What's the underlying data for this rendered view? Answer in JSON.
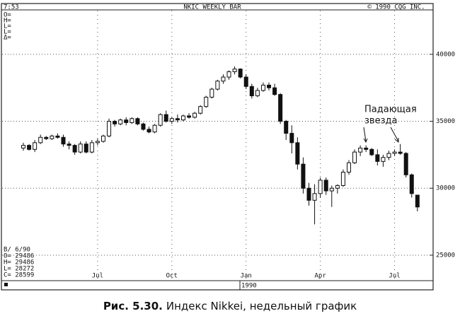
{
  "chart_data": {
    "type": "candlestick",
    "title": "NKIC WEEKLY BAR",
    "time": "7:53",
    "copyright": "© 1990 CQG INC.",
    "info_labels": [
      "O=",
      "H=",
      "L=",
      "L=",
      "Δ="
    ],
    "date": "B/ 6/90",
    "ohlc_labels": [
      "O= 29486",
      "H= 29486",
      "L= 28272",
      "C= 28599"
    ],
    "year": "1990",
    "annotation": [
      "Падающая",
      "звезда"
    ],
    "caption_label": "Рис. 5.30.",
    "caption": "Индекс Nikkei, недельный график",
    "categories": [
      null,
      null,
      null,
      null,
      null,
      null,
      null,
      null,
      null,
      null,
      null,
      null,
      null,
      "Jul",
      null,
      null,
      null,
      null,
      null,
      null,
      null,
      null,
      null,
      null,
      null,
      null,
      "Oct",
      null,
      null,
      null,
      null,
      null,
      null,
      null,
      null,
      null,
      null,
      null,
      null,
      "Jan",
      null,
      null,
      null,
      null,
      null,
      null,
      null,
      null,
      null,
      null,
      null,
      null,
      "Apr",
      null,
      null,
      null,
      null,
      null,
      null,
      null,
      null,
      null,
      null,
      null,
      null,
      "Jul",
      null,
      null,
      null,
      null
    ],
    "open": [
      33000,
      33200,
      32900,
      33400,
      33800,
      33700,
      33900,
      33800,
      33300,
      33200,
      32700,
      33300,
      32700,
      33400,
      33500,
      33900,
      35000,
      34800,
      35100,
      34900,
      35200,
      34800,
      34400,
      34200,
      34700,
      35500,
      35000,
      35200,
      35100,
      35400,
      35300,
      35600,
      36100,
      36800,
      37400,
      38000,
      38300,
      38700,
      38900,
      38300,
      37600,
      36900,
      37300,
      37700,
      37500,
      37000,
      35000,
      34100,
      33400,
      31800,
      30000,
      29100,
      29600,
      30600,
      29800,
      30000,
      30200,
      31200,
      31900,
      32700,
      33000,
      32900,
      32500,
      32000,
      32300,
      32600,
      32700,
      32600,
      31000,
      29486
    ],
    "high": [
      33400,
      33300,
      33600,
      34000,
      33900,
      34000,
      34100,
      34000,
      33500,
      33300,
      33500,
      33500,
      33600,
      33700,
      34000,
      35200,
      35100,
      35200,
      35300,
      35300,
      35300,
      34900,
      34600,
      34800,
      35600,
      35800,
      35300,
      35500,
      35500,
      35600,
      35700,
      36200,
      36900,
      37500,
      38100,
      38500,
      38800,
      39100,
      38950,
      38500,
      37800,
      37500,
      37900,
      37900,
      37800,
      37100,
      35100,
      34700,
      33800,
      32300,
      30400,
      30300,
      30800,
      30800,
      30200,
      30300,
      31400,
      32100,
      32900,
      33200,
      33200,
      33000,
      32900,
      32500,
      32800,
      32900,
      33300,
      32700,
      31100,
      29486
    ],
    "low": [
      32800,
      32800,
      32700,
      33300,
      33600,
      33600,
      33700,
      33100,
      32900,
      32500,
      32600,
      32600,
      32600,
      33200,
      33400,
      33800,
      34600,
      34700,
      34700,
      34800,
      34700,
      34300,
      34100,
      34100,
      34600,
      34900,
      34800,
      34900,
      35000,
      35200,
      35200,
      35500,
      36000,
      36700,
      37300,
      37800,
      38100,
      38500,
      38200,
      37400,
      36700,
      36800,
      37200,
      37300,
      36900,
      34800,
      33600,
      32600,
      31400,
      29600,
      28700,
      27300,
      29300,
      29500,
      28600,
      29600,
      30100,
      31000,
      31800,
      32400,
      32700,
      32400,
      31700,
      31600,
      32100,
      32400,
      32500,
      30800,
      29300,
      28272
    ],
    "close": [
      33200,
      32900,
      33400,
      33800,
      33700,
      33900,
      33800,
      33300,
      33200,
      32700,
      33300,
      32700,
      33400,
      33500,
      33900,
      35000,
      34800,
      35100,
      34900,
      35200,
      34800,
      34400,
      34200,
      34700,
      35500,
      35000,
      35200,
      35100,
      35400,
      35300,
      35600,
      36100,
      36800,
      37400,
      38000,
      38300,
      38700,
      38900,
      38300,
      37600,
      36900,
      37300,
      37700,
      37500,
      37000,
      35000,
      34100,
      33400,
      31800,
      30000,
      29100,
      29600,
      30600,
      29800,
      30000,
      30200,
      31200,
      31900,
      32700,
      33000,
      32900,
      32500,
      32000,
      32300,
      32600,
      32700,
      32600,
      31000,
      29600,
      28599
    ],
    "ylim": [
      23150,
      43000
    ],
    "yticks": [
      25000,
      30000,
      35000,
      40000
    ],
    "grid": true,
    "color": "#111111"
  }
}
